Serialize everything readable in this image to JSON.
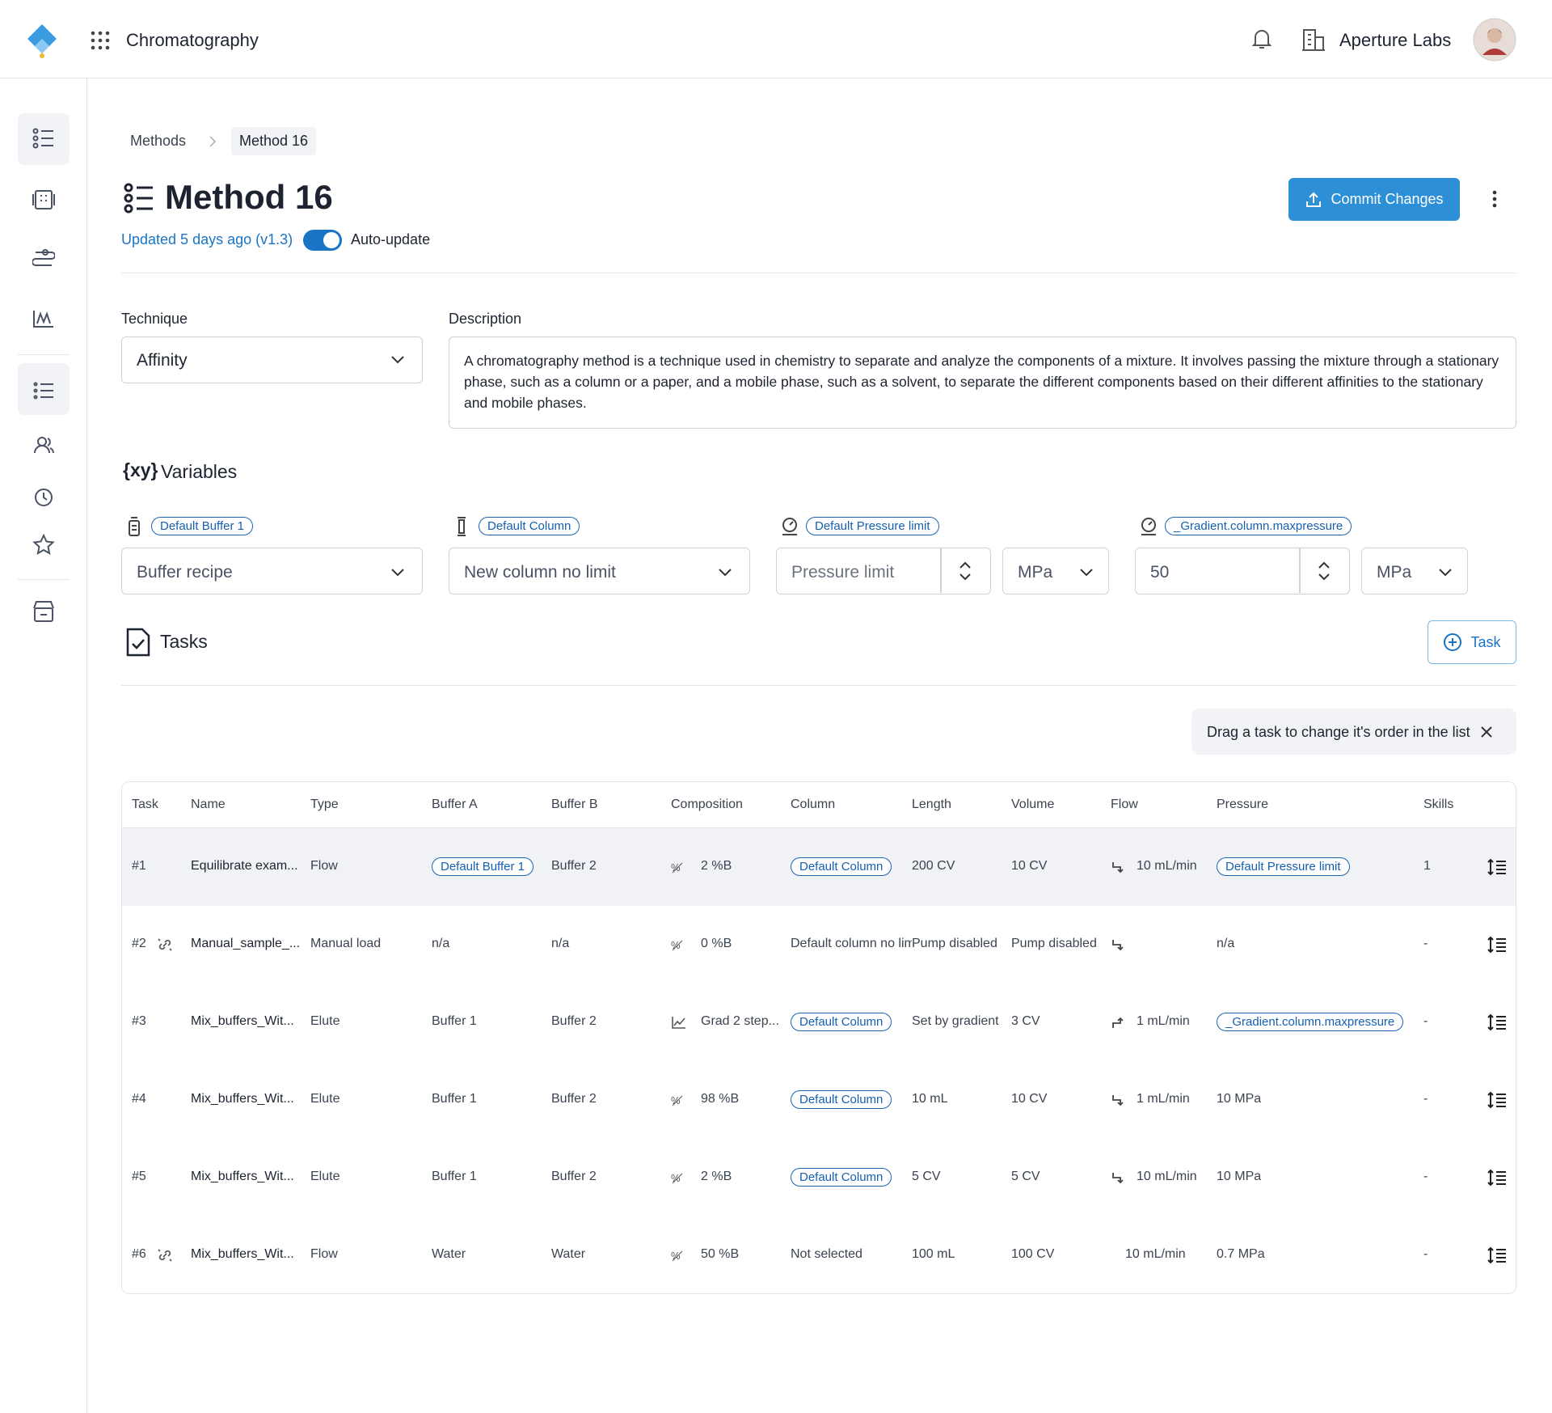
{
  "header": {
    "app_name": "Chromatography",
    "org": "Aperture Labs"
  },
  "breadcrumb": [
    "Methods",
    "Method 16"
  ],
  "title": "Method 16",
  "updated": "Updated 5 days ago (v1.3)",
  "toggle_label": "Auto-update",
  "commit_button": "Commit Changes",
  "technique": {
    "label": "Technique",
    "value": "Affinity"
  },
  "description": {
    "label": "Description",
    "text": "A chromatography method is a technique used in chemistry to separate and analyze the components of a mixture. It involves passing the mixture through a stationary phase, such as a column or a paper, and a mobile phase, such as a solvent, to separate the different components based on their different affinities to the stationary and mobile phases."
  },
  "variables": {
    "icon": "{xy}",
    "title": "Variables",
    "items": [
      {
        "tag": "Default Buffer 1",
        "value": "Buffer recipe"
      },
      {
        "tag": "Default Column",
        "value": "New column no limit"
      },
      {
        "tag": "Default Pressure limit",
        "value": "Pressure limit",
        "unit": "MPa"
      },
      {
        "tag": "_Gradient.column.maxpressure",
        "value": "50",
        "unit": "MPa"
      }
    ]
  },
  "tasks": {
    "title": "Tasks",
    "add_button": "Task",
    "hint": "Drag a task to change it's order in the list"
  },
  "table": {
    "columns": [
      "Task",
      "Name",
      "Type",
      "Buffer A",
      "Buffer B",
      "Composition",
      "Column",
      "Length",
      "Volume",
      "Flow",
      "Pressure",
      "Skills"
    ],
    "rows": [
      {
        "cells": [
          "#1",
          "Equilibrate exam...",
          "Flow",
          {
            "tag": "Default Buffer 1"
          },
          "Buffer 2",
          "2 %B",
          {
            "tag": "Default Column"
          },
          "200 CV",
          "10 CV",
          "10 mL/min",
          {
            "tag": "Default Pressure limit"
          },
          "1"
        ]
      },
      {
        "cells": [
          "#2",
          "Manual_sample_...",
          "Manual load",
          "n/a",
          "n/a",
          "0 %B",
          "Default column no limit",
          "Pump disabled",
          "Pump disabled",
          null,
          "n/a",
          "-"
        ]
      },
      {
        "cells": [
          "#3",
          "Mix_buffers_Wit...",
          "Elute",
          "Buffer 1",
          "Buffer 2",
          "Grad 2 step...",
          {
            "tag": "Default Column"
          },
          "Set by gradient",
          "3 CV",
          "1 mL/min",
          {
            "tag": "_Gradient.column.maxpressure"
          },
          "-"
        ]
      },
      {
        "cells": [
          "#4",
          "Mix_buffers_Wit...",
          "Elute",
          "Buffer 1",
          "Buffer 2",
          "98 %B",
          {
            "tag": "Default Column"
          },
          "10 mL",
          "10 CV",
          "1 mL/min",
          "10 MPa",
          "-"
        ]
      },
      {
        "cells": [
          "#5",
          "Mix_buffers_Wit...",
          "Elute",
          "Buffer 1",
          "Buffer 2",
          "2 %B",
          {
            "tag": "Default Column"
          },
          "5 CV",
          "5 CV",
          "10 mL/min",
          "10 MPa",
          "-"
        ]
      },
      {
        "cells": [
          "#6",
          "Mix_buffers_Wit...",
          "Flow",
          "Water",
          "Water",
          "50 %B",
          "Not selected",
          "100 mL",
          "100 CV",
          "10 mL/min",
          "0.7 MPa",
          "-"
        ]
      }
    ]
  }
}
